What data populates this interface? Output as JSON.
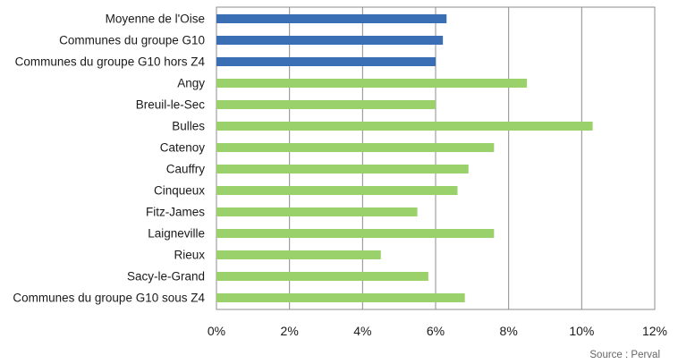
{
  "chart_data": {
    "type": "bar",
    "orientation": "horizontal",
    "categories": [
      "Moyenne de l'Oise",
      "Communes du groupe G10",
      "Communes du groupe G10 hors Z4",
      "Angy",
      "Breuil-le-Sec",
      "Bulles",
      "Catenoy",
      "Cauffry",
      "Cinqueux",
      "Fitz-James",
      "Laigneville",
      "Rieux",
      "Sacy-le-Grand",
      "Communes du groupe G10 sous Z4"
    ],
    "values": [
      6.3,
      6.2,
      6.0,
      8.5,
      6.0,
      10.3,
      7.6,
      6.9,
      6.6,
      5.5,
      7.6,
      4.5,
      5.8,
      6.8
    ],
    "bar_colors": [
      "#3a6fb5",
      "#3a6fb5",
      "#3a6fb5",
      "#9bd16a",
      "#9bd16a",
      "#9bd16a",
      "#9bd16a",
      "#9bd16a",
      "#9bd16a",
      "#9bd16a",
      "#9bd16a",
      "#9bd16a",
      "#9bd16a",
      "#9bd16a"
    ],
    "xlim": [
      0,
      12
    ],
    "x_ticks": [
      "0%",
      "2%",
      "4%",
      "6%",
      "8%",
      "10%",
      "12%"
    ],
    "grid": true,
    "source": "Source : Perval"
  }
}
